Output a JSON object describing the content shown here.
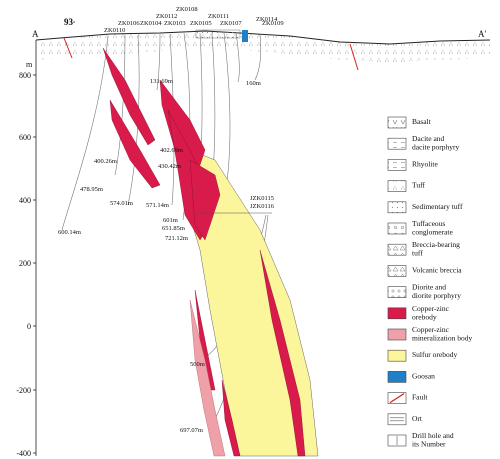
{
  "section": {
    "left_end": "A",
    "right_end": "A'",
    "elevation_unit": "m",
    "azimuth": "93",
    "depth_ticks": [
      "800",
      "600",
      "400",
      "200",
      "0",
      "-200",
      "-400"
    ]
  },
  "drill_holes": [
    "ZK0110",
    "ZK0106",
    "ZK0104",
    "ZK0112",
    "ZK0103",
    "ZK0108",
    "ZK0105",
    "ZK0111",
    "ZK0107",
    "ZK0114",
    "ZK0109",
    "JZK0115",
    "JZK0116"
  ],
  "depth_labels": [
    "131.69m",
    "160m",
    "402.69m",
    "430.42m",
    "400.26m",
    "478.95m",
    "574.01m",
    "571.14m",
    "601m",
    "651.85m",
    "721.12m",
    "600.14m",
    "500m",
    "697.07m"
  ],
  "legend": {
    "items": [
      {
        "key": "basalt",
        "label": "Basalt"
      },
      {
        "key": "dacite",
        "label": "Dacite and dacite porphyry"
      },
      {
        "key": "rhyolite",
        "label": "Rhyolite"
      },
      {
        "key": "tuff",
        "label": "Tuff"
      },
      {
        "key": "sed_tuff",
        "label": "Sedimentary tuff"
      },
      {
        "key": "tuff_cong",
        "label": "Tuffaceous conglomerate"
      },
      {
        "key": "breccia_tuff",
        "label": "Breccia-bearing tuff"
      },
      {
        "key": "volc_breccia",
        "label": "Volcanic breccia"
      },
      {
        "key": "diorite",
        "label": "Diorite and diorite porphyry"
      },
      {
        "key": "cu_zn",
        "label": "Copper-zinc orebody"
      },
      {
        "key": "cu_zn_min",
        "label": "Copper-zinc mineralization body"
      },
      {
        "key": "sulfur",
        "label": "Sulfur orebody"
      },
      {
        "key": "gossan",
        "label": "Goosan"
      },
      {
        "key": "fault",
        "label": "Fault"
      },
      {
        "key": "ort",
        "label": "Ort"
      },
      {
        "key": "drillhole",
        "label": "Drill hole and its Number"
      }
    ]
  },
  "colors": {
    "copper_zinc": "#d81b4a",
    "mineralization": "#f0a0a8",
    "sulfur": "#fbf59b",
    "gossan": "#1f7fc9",
    "fault": "#d42020"
  }
}
